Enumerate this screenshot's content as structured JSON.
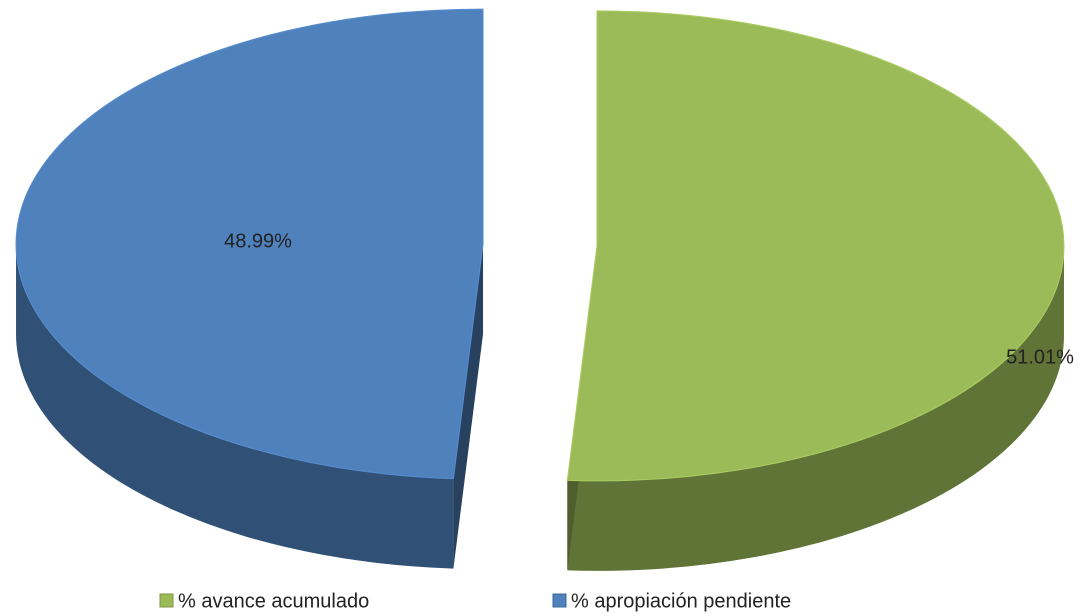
{
  "chart_data": {
    "type": "pie",
    "labels": [
      "% avance acumulado",
      "% apropiación pendiente"
    ],
    "values": [
      51.01,
      48.99
    ],
    "value_labels": [
      "51.01%",
      "48.99%"
    ],
    "colors": [
      "#9bbb59",
      "#4f81bd"
    ]
  }
}
